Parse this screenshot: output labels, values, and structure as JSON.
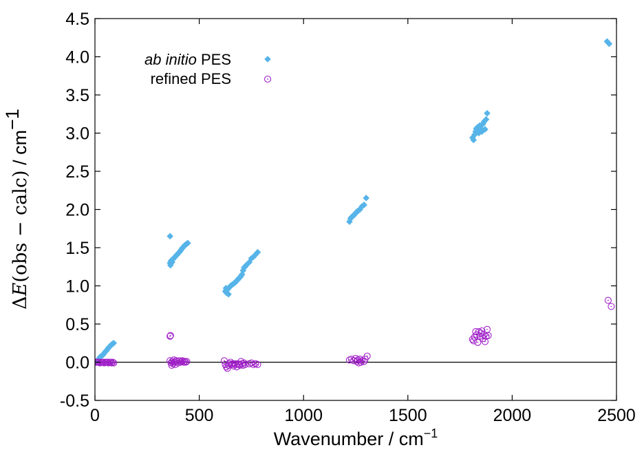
{
  "chart_data": {
    "type": "scatter",
    "xlabel": "Wavenumber / cm",
    "xlabel_superscript": "−1",
    "ylabel_delta": "Δ",
    "ylabel_E": "E",
    "ylabel_args": "(obs − calc)",
    "ylabel_unit": " / cm",
    "ylabel_superscript": "−1",
    "xlim": [
      0,
      2500
    ],
    "ylim": [
      -0.5,
      4.5
    ],
    "xticks": [
      0,
      500,
      1000,
      1500,
      2000,
      2500
    ],
    "yticks": [
      -0.5,
      0.0,
      0.5,
      1.0,
      1.5,
      2.0,
      2.5,
      3.0,
      3.5,
      4.0,
      4.5
    ],
    "xtick_labels": [
      "0",
      "500",
      "1000",
      "1500",
      "2000",
      "2500"
    ],
    "ytick_labels": [
      "-0.5",
      "0.0",
      "0.5",
      "1.0",
      "1.5",
      "2.0",
      "2.5",
      "3.0",
      "3.5",
      "4.0",
      "4.5"
    ],
    "grid": false,
    "zero_line": true,
    "legend_position": "top-left",
    "series": [
      {
        "name": "ab initio PES",
        "name_italic": "ab initio",
        "name_rest": " PES",
        "marker": "filled-diamond",
        "color": "#56b4e9",
        "points": [
          [
            5,
            0.0
          ],
          [
            10,
            0.02
          ],
          [
            15,
            0.03
          ],
          [
            20,
            0.05
          ],
          [
            25,
            0.07
          ],
          [
            30,
            0.08
          ],
          [
            35,
            0.09
          ],
          [
            40,
            0.1
          ],
          [
            45,
            0.12
          ],
          [
            50,
            0.14
          ],
          [
            55,
            0.15
          ],
          [
            60,
            0.17
          ],
          [
            65,
            0.19
          ],
          [
            70,
            0.2
          ],
          [
            75,
            0.22
          ],
          [
            80,
            0.23
          ],
          [
            85,
            0.24
          ],
          [
            90,
            0.25
          ],
          [
            360,
            1.65
          ],
          [
            360,
            1.3
          ],
          [
            362,
            1.27
          ],
          [
            365,
            1.33
          ],
          [
            370,
            1.31
          ],
          [
            375,
            1.35
          ],
          [
            380,
            1.37
          ],
          [
            385,
            1.38
          ],
          [
            390,
            1.4
          ],
          [
            395,
            1.41
          ],
          [
            400,
            1.43
          ],
          [
            405,
            1.44
          ],
          [
            410,
            1.46
          ],
          [
            415,
            1.48
          ],
          [
            420,
            1.5
          ],
          [
            425,
            1.51
          ],
          [
            430,
            1.53
          ],
          [
            435,
            1.54
          ],
          [
            440,
            1.55
          ],
          [
            445,
            1.56
          ],
          [
            625,
            0.93
          ],
          [
            628,
            0.97
          ],
          [
            630,
            0.91
          ],
          [
            635,
            0.95
          ],
          [
            640,
            0.89
          ],
          [
            645,
            0.98
          ],
          [
            650,
            1.0
          ],
          [
            655,
            1.01
          ],
          [
            660,
            1.02
          ],
          [
            665,
            1.03
          ],
          [
            670,
            1.04
          ],
          [
            675,
            1.05
          ],
          [
            680,
            1.07
          ],
          [
            685,
            1.08
          ],
          [
            690,
            1.1
          ],
          [
            695,
            1.11
          ],
          [
            700,
            1.13
          ],
          [
            705,
            1.15
          ],
          [
            710,
            1.2
          ],
          [
            715,
            1.24
          ],
          [
            720,
            1.25
          ],
          [
            725,
            1.27
          ],
          [
            740,
            1.31
          ],
          [
            750,
            1.36
          ],
          [
            760,
            1.38
          ],
          [
            770,
            1.41
          ],
          [
            780,
            1.44
          ],
          [
            1220,
            1.84
          ],
          [
            1225,
            1.88
          ],
          [
            1230,
            1.9
          ],
          [
            1235,
            1.91
          ],
          [
            1240,
            1.92
          ],
          [
            1245,
            1.94
          ],
          [
            1250,
            1.95
          ],
          [
            1255,
            1.97
          ],
          [
            1260,
            1.98
          ],
          [
            1265,
            1.99
          ],
          [
            1270,
            2.0
          ],
          [
            1280,
            2.04
          ],
          [
            1290,
            2.06
          ],
          [
            1300,
            2.15
          ],
          [
            1810,
            2.94
          ],
          [
            1815,
            2.91
          ],
          [
            1820,
            2.98
          ],
          [
            1825,
            3.02
          ],
          [
            1828,
            3.06
          ],
          [
            1830,
            3.04
          ],
          [
            1835,
            3.08
          ],
          [
            1840,
            3.0
          ],
          [
            1845,
            3.1
          ],
          [
            1850,
            3.06
          ],
          [
            1855,
            3.02
          ],
          [
            1860,
            3.12
          ],
          [
            1865,
            3.15
          ],
          [
            1870,
            3.05
          ],
          [
            1875,
            3.18
          ],
          [
            1880,
            3.26
          ],
          [
            2455,
            4.2
          ],
          [
            2465,
            4.17
          ]
        ]
      },
      {
        "name": "refined PES",
        "marker": "open-circle",
        "color": "#a020c8",
        "points": [
          [
            5,
            0.0
          ],
          [
            10,
            0.0
          ],
          [
            15,
            0.0
          ],
          [
            20,
            0.0
          ],
          [
            25,
            -0.01
          ],
          [
            30,
            0.0
          ],
          [
            35,
            0.0
          ],
          [
            40,
            0.0
          ],
          [
            45,
            -0.01
          ],
          [
            50,
            0.0
          ],
          [
            55,
            0.0
          ],
          [
            60,
            0.0
          ],
          [
            65,
            -0.01
          ],
          [
            70,
            0.0
          ],
          [
            75,
            0.0
          ],
          [
            80,
            -0.01
          ],
          [
            85,
            0.0
          ],
          [
            90,
            -0.01
          ],
          [
            360,
            0.34
          ],
          [
            362,
            0.35
          ],
          [
            360,
            0.02
          ],
          [
            365,
            -0.01
          ],
          [
            368,
            -0.04
          ],
          [
            370,
            0.01
          ],
          [
            375,
            -0.02
          ],
          [
            378,
            0.03
          ],
          [
            380,
            0.0
          ],
          [
            385,
            -0.03
          ],
          [
            390,
            0.02
          ],
          [
            395,
            0.01
          ],
          [
            400,
            -0.01
          ],
          [
            405,
            0.02
          ],
          [
            410,
            0.0
          ],
          [
            415,
            0.01
          ],
          [
            420,
            0.02
          ],
          [
            425,
            0.0
          ],
          [
            430,
            0.01
          ],
          [
            435,
            0.0
          ],
          [
            440,
            0.01
          ],
          [
            620,
            0.02
          ],
          [
            625,
            -0.03
          ],
          [
            630,
            -0.06
          ],
          [
            635,
            -0.08
          ],
          [
            640,
            -0.04
          ],
          [
            645,
            -0.02
          ],
          [
            650,
            0.0
          ],
          [
            655,
            -0.03
          ],
          [
            660,
            -0.02
          ],
          [
            665,
            -0.05
          ],
          [
            670,
            -0.02
          ],
          [
            675,
            -0.03
          ],
          [
            680,
            -0.06
          ],
          [
            685,
            -0.02
          ],
          [
            690,
            -0.03
          ],
          [
            695,
            -0.04
          ],
          [
            700,
            0.01
          ],
          [
            705,
            -0.02
          ],
          [
            710,
            -0.04
          ],
          [
            715,
            -0.01
          ],
          [
            720,
            -0.03
          ],
          [
            740,
            -0.02
          ],
          [
            750,
            -0.01
          ],
          [
            760,
            -0.03
          ],
          [
            770,
            -0.02
          ],
          [
            780,
            -0.03
          ],
          [
            1220,
            0.03
          ],
          [
            1230,
            0.04
          ],
          [
            1240,
            0.02
          ],
          [
            1250,
            0.05
          ],
          [
            1255,
            0.01
          ],
          [
            1260,
            0.03
          ],
          [
            1265,
            -0.01
          ],
          [
            1270,
            0.04
          ],
          [
            1275,
            0.0
          ],
          [
            1280,
            0.02
          ],
          [
            1290,
            0.01
          ],
          [
            1295,
            0.04
          ],
          [
            1305,
            0.08
          ],
          [
            1810,
            0.3
          ],
          [
            1815,
            0.28
          ],
          [
            1820,
            0.33
          ],
          [
            1825,
            0.4
          ],
          [
            1830,
            0.36
          ],
          [
            1835,
            0.26
          ],
          [
            1840,
            0.4
          ],
          [
            1845,
            0.34
          ],
          [
            1850,
            0.38
          ],
          [
            1855,
            0.41
          ],
          [
            1860,
            0.31
          ],
          [
            1865,
            0.36
          ],
          [
            1870,
            0.27
          ],
          [
            1875,
            0.34
          ],
          [
            1880,
            0.43
          ],
          [
            1885,
            0.35
          ],
          [
            2460,
            0.81
          ],
          [
            2475,
            0.73
          ]
        ]
      }
    ]
  }
}
